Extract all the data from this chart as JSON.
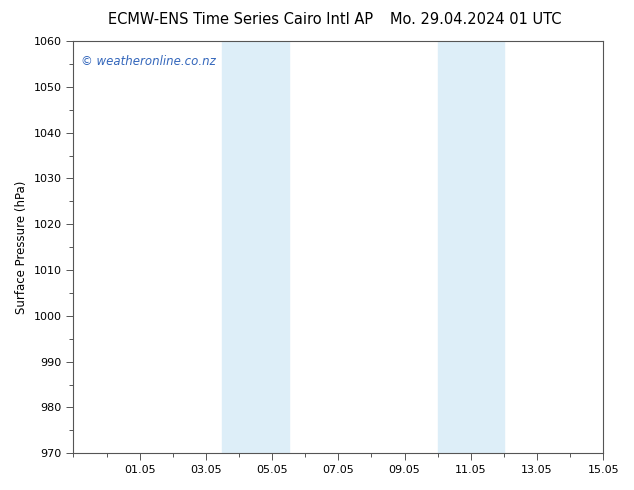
{
  "title_left": "ECMW-ENS Time Series Cairo Intl AP",
  "title_right": "Mo. 29.04.2024 01 UTC",
  "ylabel": "Surface Pressure (hPa)",
  "xlabel": "",
  "ylim": [
    970,
    1060
  ],
  "yticks": [
    970,
    980,
    990,
    1000,
    1010,
    1020,
    1030,
    1040,
    1050,
    1060
  ],
  "xtick_labels": [
    "01.05",
    "03.05",
    "05.05",
    "07.05",
    "09.05",
    "11.05",
    "13.05",
    "15.05"
  ],
  "xtick_positions": [
    2,
    4,
    6,
    8,
    10,
    12,
    14,
    16
  ],
  "xlim": [
    0,
    16
  ],
  "shaded_bands": [
    {
      "x_start": 4.5,
      "x_end": 6.5
    },
    {
      "x_start": 11.0,
      "x_end": 13.0
    }
  ],
  "shade_color": "#ddeef8",
  "background_color": "#ffffff",
  "plot_bg_color": "#ffffff",
  "watermark_text": "© weatheronline.co.nz",
  "watermark_color": "#3366bb",
  "watermark_fontsize": 8.5,
  "title_fontsize": 10.5,
  "axis_label_fontsize": 8.5,
  "tick_fontsize": 8,
  "border_color": "#555555"
}
